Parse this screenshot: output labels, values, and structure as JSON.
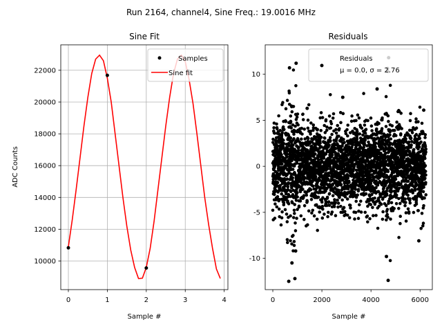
{
  "figure": {
    "suptitle": "Run 2164, channel4, Sine Freq.: 19.0016 MHz"
  },
  "chart_data": [
    {
      "type": "line",
      "title": "Sine Fit",
      "xlabel": "Sample #",
      "ylabel": "ADC Counts",
      "xlim": [
        -0.195,
        4.095
      ],
      "ylim": [
        8200,
        23600
      ],
      "xticks": [
        0,
        1,
        2,
        3,
        4
      ],
      "yticks": [
        10000,
        12000,
        14000,
        16000,
        18000,
        20000,
        22000
      ],
      "grid": true,
      "legend": {
        "position": "top-right",
        "entries": [
          "Samples",
          "Sine fit"
        ]
      },
      "samples": {
        "name": "Samples",
        "x": [
          0,
          1,
          2
        ],
        "y": [
          10830,
          21680,
          9560
        ]
      },
      "fit": {
        "name": "Sine fit",
        "x": [
          0,
          0.1,
          0.2,
          0.3,
          0.4,
          0.5,
          0.6,
          0.7,
          0.8,
          0.9,
          1.0,
          1.1,
          1.2,
          1.3,
          1.4,
          1.5,
          1.6,
          1.7,
          1.8,
          1.9,
          2.0,
          2.1,
          2.2,
          2.3,
          2.4,
          2.5,
          2.6,
          2.7,
          2.8,
          2.9,
          3.0,
          3.1,
          3.2,
          3.3,
          3.4,
          3.5,
          3.6,
          3.7,
          3.8,
          3.9
        ],
        "y": [
          10900,
          12600,
          14500,
          16500,
          18500,
          20300,
          21800,
          22700,
          22950,
          22600,
          21500,
          20000,
          18000,
          16000,
          14000,
          12200,
          10700,
          9600,
          8900,
          8920,
          9600,
          10800,
          12500,
          14500,
          16500,
          18500,
          20300,
          21800,
          22700,
          22950,
          22550,
          21400,
          19900,
          18000,
          16000,
          14000,
          12300,
          10800,
          9500,
          8900
        ]
      }
    },
    {
      "type": "scatter",
      "title": "Residuals",
      "xlabel": "Sample #",
      "ylabel": "",
      "xlim": [
        -310,
        6500
      ],
      "ylim": [
        -13.4,
        13.2
      ],
      "xticks": [
        0,
        2000,
        4000,
        6000
      ],
      "yticks": [
        -10,
        -5,
        0,
        5,
        10
      ],
      "grid": false,
      "legend": {
        "position": "top-right",
        "entries": [
          "Residuals",
          "μ = 0.0, σ = 2.76"
        ]
      },
      "series": {
        "name": "Residuals",
        "n_points": 6250,
        "x_range": [
          0,
          6240
        ],
        "mean": 0.0,
        "std": 2.76,
        "min": -12.5,
        "max": 11.8,
        "outliers": [
          {
            "x": 650,
            "y": -12.5
          },
          {
            "x": 900,
            "y": -12.2
          },
          {
            "x": 4700,
            "y": -12.4
          },
          {
            "x": 4720,
            "y": 11.8
          },
          {
            "x": 950,
            "y": 11.2
          },
          {
            "x": 680,
            "y": 10.7
          },
          {
            "x": 4680,
            "y": 10.3
          },
          {
            "x": 4250,
            "y": 8.4
          },
          {
            "x": 2850,
            "y": 7.5
          },
          {
            "x": 1400,
            "y": 6.3
          },
          {
            "x": 6150,
            "y": 6.1
          },
          {
            "x": 5950,
            "y": -8.1
          },
          {
            "x": 780,
            "y": -10.5
          },
          {
            "x": 930,
            "y": -9.2
          },
          {
            "x": 4630,
            "y": -9.8
          }
        ]
      },
      "stats_label": "μ = 0.0, σ = 2.76"
    }
  ]
}
